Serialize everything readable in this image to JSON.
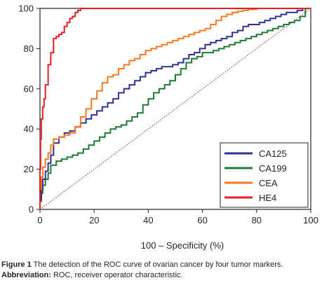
{
  "chart_data": {
    "type": "line",
    "xlabel": "100 – Specificity (%)",
    "ylabel": "",
    "xlim": [
      0,
      100
    ],
    "ylim": [
      0,
      100
    ],
    "x_ticks": [
      "0",
      "20",
      "40",
      "60",
      "80",
      "100"
    ],
    "y_ticks": [
      "0",
      "20",
      "40",
      "60",
      "80",
      "100"
    ],
    "grid": false,
    "legend_position": "bottom-right",
    "reference_line": {
      "x": [
        0,
        100
      ],
      "y": [
        0,
        100
      ],
      "color": "#8b2a2a",
      "style": "dotted"
    },
    "series": [
      {
        "name": "CA125",
        "color": "#2e3192",
        "x": [
          0,
          0.5,
          1,
          2,
          3,
          4,
          5,
          7,
          9,
          11,
          13,
          15,
          17,
          19,
          21,
          23,
          25,
          27,
          29,
          31,
          33,
          35,
          37,
          39,
          41,
          43,
          45,
          47,
          49,
          51,
          53,
          55,
          57,
          59,
          61,
          63,
          65,
          67,
          69,
          71,
          73,
          75,
          77,
          79,
          81,
          83,
          85,
          87,
          89,
          91,
          93,
          95,
          97,
          100
        ],
        "y": [
          0,
          5,
          10,
          15,
          19,
          23,
          27,
          33,
          36,
          38,
          39,
          41,
          43,
          45,
          47,
          49,
          51,
          53,
          55,
          58,
          60,
          62,
          64,
          66,
          68,
          69,
          70,
          71,
          71,
          72,
          73,
          75,
          77,
          78,
          80,
          82,
          83,
          84,
          85,
          86,
          88,
          89,
          91,
          92,
          92,
          93,
          94,
          95,
          96,
          97,
          98,
          98,
          99,
          100
        ]
      },
      {
        "name": "CA199",
        "color": "#1e7b34",
        "x": [
          0,
          0.5,
          1,
          2,
          3,
          4,
          6,
          8,
          10,
          12,
          14,
          16,
          18,
          20,
          22,
          24,
          26,
          28,
          30,
          32,
          34,
          36,
          38,
          40,
          42,
          44,
          46,
          48,
          50,
          52,
          54,
          56,
          58,
          60,
          62,
          64,
          66,
          68,
          70,
          72,
          74,
          76,
          78,
          80,
          82,
          84,
          86,
          88,
          90,
          92,
          94,
          96,
          98,
          100
        ],
        "y": [
          0,
          4,
          8,
          12,
          15,
          18,
          22,
          24,
          25,
          26,
          27,
          28,
          30,
          32,
          34,
          36,
          38,
          40,
          41,
          42,
          44,
          46,
          48,
          52,
          55,
          58,
          60,
          62,
          64,
          67,
          70,
          73,
          75,
          76,
          78,
          78,
          79,
          80,
          81,
          82,
          83,
          84,
          85,
          86,
          87,
          88,
          89,
          90,
          91,
          92,
          93,
          94,
          96,
          100
        ]
      },
      {
        "name": "CEA",
        "color": "#f47920",
        "x": [
          0,
          0.5,
          1,
          2,
          3,
          4,
          5,
          7,
          9,
          11,
          13,
          15,
          17,
          19,
          21,
          23,
          25,
          27,
          29,
          31,
          33,
          35,
          37,
          39,
          41,
          43,
          45,
          47,
          49,
          51,
          53,
          55,
          57,
          59,
          61,
          63,
          65,
          67,
          69,
          71,
          73,
          75,
          77,
          80,
          85,
          90,
          95,
          100
        ],
        "y": [
          0,
          10,
          16,
          21,
          25,
          28,
          32,
          35,
          36,
          37,
          38,
          41,
          46,
          50,
          55,
          59,
          63,
          66,
          67,
          70,
          72,
          74,
          75,
          77,
          79,
          80,
          81,
          82,
          83,
          84,
          85,
          86,
          87,
          88,
          89,
          90,
          92,
          94,
          96,
          97,
          98,
          98.5,
          99,
          99.5,
          100,
          100,
          100,
          100
        ]
      },
      {
        "name": "HE4",
        "color": "#e31e24",
        "x": [
          0,
          0.2,
          0.5,
          1,
          1.5,
          2,
          3,
          4,
          5,
          6,
          7,
          8,
          9,
          10,
          11,
          12,
          13,
          14,
          15,
          16,
          20,
          30,
          40,
          50,
          60,
          70,
          80,
          90,
          100
        ],
        "y": [
          0,
          20,
          35,
          45,
          51,
          55,
          62,
          72,
          78,
          85,
          86,
          87,
          88,
          91,
          93,
          95,
          96,
          98,
          99,
          100,
          100,
          100,
          100,
          100,
          100,
          100,
          100,
          100,
          100
        ]
      }
    ]
  },
  "caption": {
    "figure_label": "Figure 1",
    "figure_text": " The detection of the ROC curve of ovarian cancer by four tumor markers.",
    "abbrev_label": "Abbreviation:",
    "abbrev_text": " ROC, receiver operator characteristic."
  }
}
